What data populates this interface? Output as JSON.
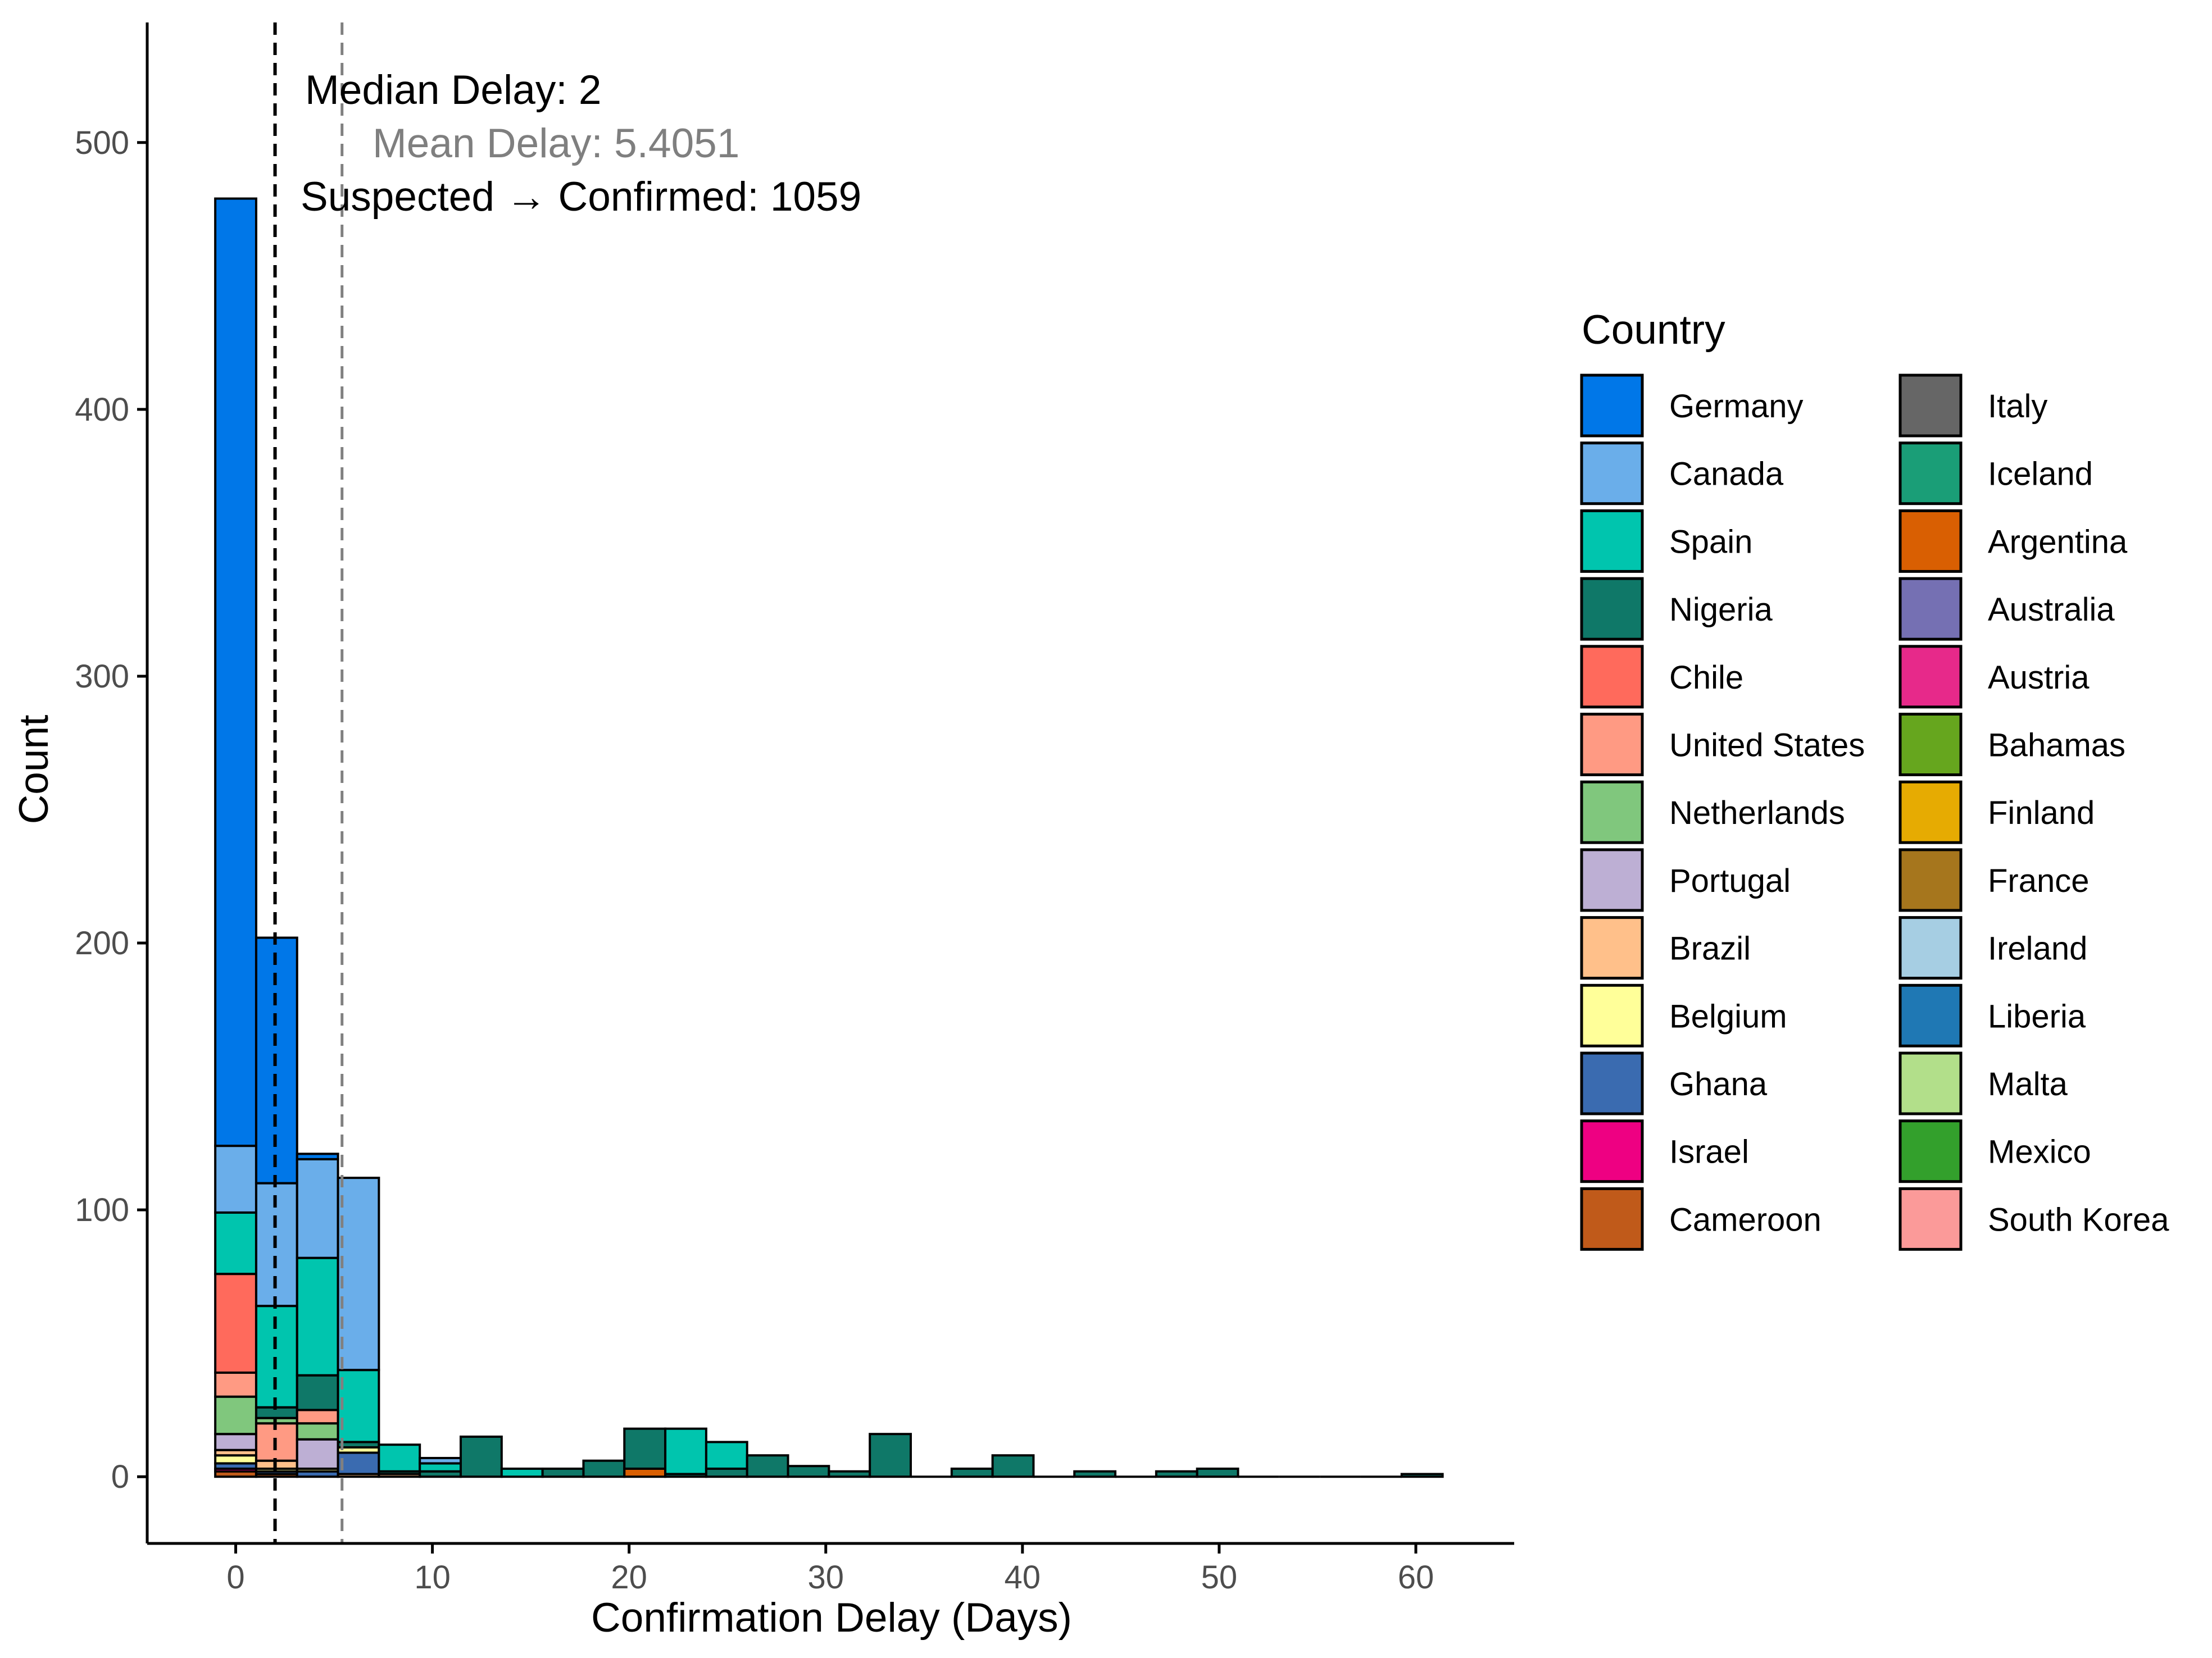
{
  "chart_data": {
    "type": "bar",
    "stacked": true,
    "title": "",
    "xlabel": "Confirmation Delay (Days)",
    "ylabel": "Count",
    "xlim": [
      -4.5,
      65
    ],
    "ylim": [
      -25,
      545
    ],
    "x_ticks": [
      0,
      10,
      20,
      30,
      40,
      50,
      60
    ],
    "y_ticks": [
      0,
      100,
      200,
      300,
      400,
      500
    ],
    "grid": false,
    "bin_width": 2.08,
    "bin_start": -1.04,
    "legend": {
      "title": "Country",
      "position": "right",
      "columns": 2,
      "entries": [
        {
          "name": "Germany",
          "color": "#0077E8"
        },
        {
          "name": "Canada",
          "color": "#6AAEEA"
        },
        {
          "name": "Spain",
          "color": "#00C5AE"
        },
        {
          "name": "Nigeria",
          "color": "#0F7868"
        },
        {
          "name": "Chile",
          "color": "#FF6A5C"
        },
        {
          "name": "United States",
          "color": "#FF9A83"
        },
        {
          "name": "Netherlands",
          "color": "#80C77D"
        },
        {
          "name": "Portugal",
          "color": "#BDAFD4"
        },
        {
          "name": "Brazil",
          "color": "#FFC08A"
        },
        {
          "name": "Belgium",
          "color": "#FFFF99"
        },
        {
          "name": "Ghana",
          "color": "#3A6BB0"
        },
        {
          "name": "Israel",
          "color": "#EE0082"
        },
        {
          "name": "Cameroon",
          "color": "#C05A1A"
        },
        {
          "name": "Italy",
          "color": "#666666"
        },
        {
          "name": "Iceland",
          "color": "#1A9E77"
        },
        {
          "name": "Argentina",
          "color": "#D95F02"
        },
        {
          "name": "Australia",
          "color": "#7570B3"
        },
        {
          "name": "Austria",
          "color": "#E7298A"
        },
        {
          "name": "Bahamas",
          "color": "#66A61E"
        },
        {
          "name": "Finland",
          "color": "#E6AB02"
        },
        {
          "name": "France",
          "color": "#A6761D"
        },
        {
          "name": "Ireland",
          "color": "#A6CEE3"
        },
        {
          "name": "Liberia",
          "color": "#1F78B4"
        },
        {
          "name": "Malta",
          "color": "#B2DF8A"
        },
        {
          "name": "Mexico",
          "color": "#33A02C"
        },
        {
          "name": "South Korea",
          "color": "#FB9A99"
        }
      ]
    },
    "bins": [
      {
        "x": 0,
        "segments": [
          [
            "Cameroon",
            2
          ],
          [
            "Israel",
            1
          ],
          [
            "Ghana",
            2
          ],
          [
            "Belgium",
            3
          ],
          [
            "Brazil",
            2
          ],
          [
            "Portugal",
            6
          ],
          [
            "Netherlands",
            14
          ],
          [
            "United States",
            9
          ],
          [
            "Chile",
            37
          ],
          [
            "Spain",
            23
          ],
          [
            "Canada",
            25
          ],
          [
            "Germany",
            355
          ]
        ]
      },
      {
        "x": 2.08,
        "segments": [
          [
            "Cameroon",
            1
          ],
          [
            "Ghana",
            1
          ],
          [
            "Belgium",
            1
          ],
          [
            "Brazil",
            3
          ],
          [
            "United States",
            14
          ],
          [
            "Netherlands",
            2
          ],
          [
            "Nigeria",
            4
          ],
          [
            "Spain",
            38
          ],
          [
            "Canada",
            46
          ],
          [
            "Germany",
            92
          ]
        ]
      },
      {
        "x": 4.16,
        "segments": [
          [
            "Ghana",
            2
          ],
          [
            "Belgium",
            1
          ],
          [
            "Portugal",
            11
          ],
          [
            "Netherlands",
            6
          ],
          [
            "United States",
            5
          ],
          [
            "Nigeria",
            13
          ],
          [
            "Spain",
            44
          ],
          [
            "Canada",
            37
          ],
          [
            "Germany",
            2
          ]
        ]
      },
      {
        "x": 6.24,
        "segments": [
          [
            "Brazil",
            1
          ],
          [
            "Ghana",
            8
          ],
          [
            "Belgium",
            2
          ],
          [
            "Nigeria",
            2
          ],
          [
            "Spain",
            27
          ],
          [
            "Canada",
            72
          ]
        ]
      },
      {
        "x": 8.32,
        "segments": [
          [
            "Brazil",
            1
          ],
          [
            "Nigeria",
            1
          ],
          [
            "Spain",
            10
          ]
        ]
      },
      {
        "x": 10.4,
        "segments": [
          [
            "Nigeria",
            2
          ],
          [
            "Spain",
            3
          ],
          [
            "Canada",
            2
          ]
        ]
      },
      {
        "x": 12.48,
        "segments": [
          [
            "Nigeria",
            15
          ]
        ]
      },
      {
        "x": 14.56,
        "segments": [
          [
            "Spain",
            3
          ]
        ]
      },
      {
        "x": 16.64,
        "segments": [
          [
            "Nigeria",
            3
          ]
        ]
      },
      {
        "x": 18.72,
        "segments": [
          [
            "Nigeria",
            6
          ]
        ]
      },
      {
        "x": 20.8,
        "segments": [
          [
            "Argentina",
            3
          ],
          [
            "Nigeria",
            15
          ]
        ]
      },
      {
        "x": 22.88,
        "segments": [
          [
            "Nigeria",
            1
          ],
          [
            "Spain",
            17
          ]
        ]
      },
      {
        "x": 24.96,
        "segments": [
          [
            "Nigeria",
            3
          ],
          [
            "Spain",
            10
          ]
        ]
      },
      {
        "x": 27.04,
        "segments": [
          [
            "Nigeria",
            8
          ]
        ]
      },
      {
        "x": 29.12,
        "segments": [
          [
            "Nigeria",
            4
          ]
        ]
      },
      {
        "x": 31.2,
        "segments": [
          [
            "Nigeria",
            2
          ]
        ]
      },
      {
        "x": 33.28,
        "segments": [
          [
            "Nigeria",
            16
          ]
        ]
      },
      {
        "x": 35.36,
        "segments": []
      },
      {
        "x": 37.44,
        "segments": [
          [
            "Nigeria",
            3
          ]
        ]
      },
      {
        "x": 39.52,
        "segments": [
          [
            "Nigeria",
            8
          ]
        ]
      },
      {
        "x": 41.6,
        "segments": []
      },
      {
        "x": 43.68,
        "segments": [
          [
            "Nigeria",
            2
          ]
        ]
      },
      {
        "x": 45.76,
        "segments": []
      },
      {
        "x": 47.84,
        "segments": [
          [
            "Nigeria",
            2
          ]
        ]
      },
      {
        "x": 49.92,
        "segments": [
          [
            "Nigeria",
            3
          ]
        ]
      },
      {
        "x": 52.0,
        "segments": []
      },
      {
        "x": 54.08,
        "segments": []
      },
      {
        "x": 56.16,
        "segments": []
      },
      {
        "x": 58.24,
        "segments": []
      },
      {
        "x": 60.32,
        "segments": [
          [
            "Nigeria",
            1
          ]
        ]
      }
    ],
    "reference_lines": [
      {
        "name": "median",
        "x": 2,
        "style": "dashed",
        "color": "#000000"
      },
      {
        "name": "mean",
        "x": 5.4051,
        "style": "dashed",
        "color": "#808080"
      }
    ],
    "annotations": {
      "median_label": "Median Delay: 2",
      "mean_label": "Mean Delay: 5.4051",
      "count_label": "Suspected → Confirmed: 1059"
    }
  }
}
